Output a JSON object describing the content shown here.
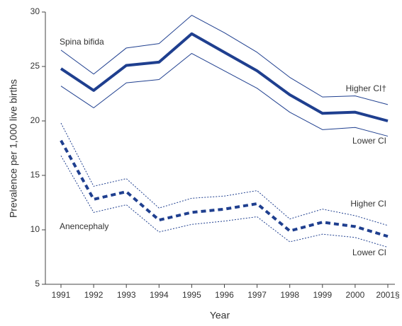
{
  "chart_data": {
    "type": "line",
    "xlabel": "Year",
    "ylabel": "Prevalence per 1,000 live births",
    "categories": [
      "1991",
      "1992",
      "1993",
      "1994",
      "1995",
      "1996",
      "1997",
      "1998",
      "1999",
      "2000",
      "2001§"
    ],
    "ylim": [
      5,
      30
    ],
    "yticks": [
      5,
      10,
      15,
      20,
      25,
      30
    ],
    "series": [
      {
        "name": "Spina bifida",
        "color": "#1f3f8f",
        "style": "solid",
        "width": 4,
        "values": [
          24.8,
          22.8,
          25.1,
          25.4,
          28.0,
          26.3,
          24.6,
          22.4,
          20.7,
          20.8,
          20.0
        ]
      },
      {
        "name": "Higher CI†",
        "color": "#1f3f8f",
        "style": "solid",
        "width": 1,
        "values": [
          26.5,
          24.3,
          26.7,
          27.1,
          29.7,
          28.1,
          26.3,
          24.0,
          22.2,
          22.3,
          21.5
        ]
      },
      {
        "name": "Lower CI",
        "color": "#1f3f8f",
        "style": "solid",
        "width": 1,
        "values": [
          23.2,
          21.2,
          23.5,
          23.8,
          26.2,
          24.6,
          23.0,
          20.8,
          19.2,
          19.4,
          18.6
        ]
      },
      {
        "name": "Anencephaly",
        "color": "#1f3f8f",
        "style": "dashed",
        "width": 4,
        "values": [
          18.2,
          12.8,
          13.5,
          10.9,
          11.6,
          11.9,
          12.4,
          9.9,
          10.7,
          10.3,
          9.4
        ]
      },
      {
        "name": "Higher CI",
        "color": "#1f3f8f",
        "style": "dotted",
        "width": 1,
        "values": [
          19.8,
          14.0,
          14.7,
          12.0,
          12.9,
          13.1,
          13.6,
          11.0,
          11.9,
          11.3,
          10.4
        ]
      },
      {
        "name": "Lower CI",
        "color": "#1f3f8f",
        "style": "dotted",
        "width": 1,
        "values": [
          16.8,
          11.6,
          12.3,
          9.8,
          10.5,
          10.8,
          11.2,
          8.9,
          9.6,
          9.3,
          8.4
        ]
      }
    ]
  }
}
